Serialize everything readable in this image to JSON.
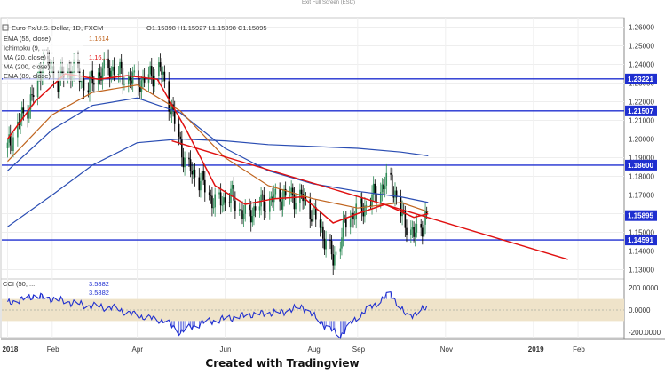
{
  "header": {
    "symbol": "Euro Fx/U.S. Dollar, 1D, FXCM",
    "ohlc": "O1.15398  H1.15927  L1.15398  C1.15895",
    "exit_fullscreen": "Exit Full Screen (ESC)"
  },
  "legend_items": [
    {
      "label": "EMA (55, close)",
      "value": "1.1614",
      "color": "#c0641e"
    },
    {
      "label": "Ichimoku (9, ...",
      "value": "",
      "color": "#888888"
    },
    {
      "label": "MA (20, close)",
      "value": "1.16...",
      "color": "#e01010"
    },
    {
      "label": "MA (200, close)",
      "value": "",
      "color": "#2a4db3"
    },
    {
      "label": "EMA (89, close)",
      "value": "",
      "color": "#2a4db3"
    }
  ],
  "cci_legend": {
    "label": "CCI (50, ...",
    "value1": "3.5882",
    "value2": "3.5882"
  },
  "caption": "Created with Tradingview",
  "colors": {
    "candle_up": "#2e8b57",
    "candle_down": "#000000",
    "ma20": "#e01010",
    "ema55": "#c0641e",
    "ma200": "#2a4db3",
    "ema89": "#2a4db3",
    "hline": "#1f2fd0",
    "trendline": "#e01010",
    "cci": "#1f2fd0",
    "cci_band": "#efe3c9",
    "price_tag": "#1f2fd0",
    "current_tag": "#1f2fd0"
  },
  "chart_data": {
    "type": "line",
    "title": "",
    "xlabel": "",
    "ylabel": "",
    "ylim": [
      1.125,
      1.265
    ],
    "y_ticks": [
      "1.26000",
      "1.25000",
      "1.24000",
      "1.23000",
      "1.22000",
      "1.21000",
      "1.20000",
      "1.19000",
      "1.18000",
      "1.17000",
      "1.16000",
      "1.15000",
      "1.14000",
      "1.13000"
    ],
    "x_tick_labels": [
      "2018",
      "Feb",
      "Apr",
      "Jun",
      "Aug",
      "Sep",
      "Nov",
      "2019",
      "Feb"
    ],
    "horizontal_levels": [
      {
        "label": "1.23221",
        "value": 1.23221
      },
      {
        "label": "1.21507",
        "value": 1.21507
      },
      {
        "label": "1.18600",
        "value": 1.186
      },
      {
        "label": "1.14591",
        "value": 1.14591
      }
    ],
    "current_price": {
      "label": "1.15895",
      "value": 1.15895
    },
    "trendline": {
      "start": {
        "x": "2018-04-25",
        "y": 1.199
      },
      "end": {
        "x": "2019-01-25",
        "y": 1.1355
      }
    },
    "close_series": {
      "x": [
        "2018-01-01",
        "2018-01-10",
        "2018-01-20",
        "2018-01-26",
        "2018-02-05",
        "2018-02-15",
        "2018-02-25",
        "2018-03-05",
        "2018-03-15",
        "2018-03-25",
        "2018-04-05",
        "2018-04-17",
        "2018-04-25",
        "2018-05-05",
        "2018-05-15",
        "2018-05-25",
        "2018-06-05",
        "2018-06-15",
        "2018-06-25",
        "2018-07-05",
        "2018-07-15",
        "2018-07-25",
        "2018-08-05",
        "2018-08-15",
        "2018-08-25",
        "2018-09-05",
        "2018-09-15",
        "2018-09-24",
        "2018-10-01",
        "2018-10-10",
        "2018-10-20"
      ],
      "y": [
        1.195,
        1.21,
        1.225,
        1.242,
        1.232,
        1.238,
        1.228,
        1.235,
        1.238,
        1.232,
        1.231,
        1.238,
        1.215,
        1.185,
        1.178,
        1.165,
        1.17,
        1.158,
        1.165,
        1.168,
        1.17,
        1.168,
        1.155,
        1.135,
        1.158,
        1.163,
        1.172,
        1.178,
        1.16,
        1.148,
        1.159
      ]
    },
    "ma20": {
      "x": [
        "2018-01-01",
        "2018-01-20",
        "2018-02-10",
        "2018-03-05",
        "2018-03-25",
        "2018-04-15",
        "2018-05-05",
        "2018-05-25",
        "2018-06-15",
        "2018-07-05",
        "2018-07-25",
        "2018-08-15",
        "2018-09-01",
        "2018-09-20",
        "2018-10-10",
        "2018-10-20"
      ],
      "y": [
        1.2,
        1.22,
        1.235,
        1.232,
        1.234,
        1.232,
        1.205,
        1.175,
        1.165,
        1.168,
        1.169,
        1.155,
        1.16,
        1.165,
        1.158,
        1.16
      ]
    },
    "ema55": {
      "x": [
        "2018-01-01",
        "2018-02-01",
        "2018-03-01",
        "2018-04-01",
        "2018-05-01",
        "2018-06-01",
        "2018-07-01",
        "2018-08-01",
        "2018-09-01",
        "2018-10-01",
        "2018-10-20"
      ],
      "y": [
        1.188,
        1.213,
        1.225,
        1.229,
        1.215,
        1.19,
        1.175,
        1.168,
        1.163,
        1.166,
        1.161
      ]
    },
    "ema89": {
      "x": [
        "2018-01-01",
        "2018-02-01",
        "2018-03-01",
        "2018-04-01",
        "2018-05-01",
        "2018-06-01",
        "2018-07-01",
        "2018-08-01",
        "2018-09-01",
        "2018-10-01",
        "2018-10-20"
      ],
      "y": [
        1.183,
        1.205,
        1.218,
        1.222,
        1.214,
        1.195,
        1.183,
        1.176,
        1.172,
        1.169,
        1.166
      ]
    },
    "ma200": {
      "x": [
        "2018-01-01",
        "2018-02-01",
        "2018-03-01",
        "2018-04-01",
        "2018-05-01",
        "2018-06-01",
        "2018-07-01",
        "2018-08-01",
        "2018-09-01",
        "2018-10-01",
        "2018-10-20"
      ],
      "y": [
        1.153,
        1.17,
        1.186,
        1.198,
        1.2,
        1.199,
        1.197,
        1.196,
        1.195,
        1.193,
        1.191
      ]
    },
    "cci": {
      "ylim": [
        -250,
        250
      ],
      "y_ticks": [
        "200.0000",
        "0.0000",
        "-200.0000"
      ],
      "band": [
        100,
        -100
      ],
      "x": [
        "2018-01-01",
        "2018-01-20",
        "2018-02-05",
        "2018-02-25",
        "2018-03-15",
        "2018-04-01",
        "2018-04-20",
        "2018-05-01",
        "2018-05-15",
        "2018-06-01",
        "2018-06-20",
        "2018-07-10",
        "2018-07-25",
        "2018-08-10",
        "2018-08-20",
        "2018-09-01",
        "2018-09-15",
        "2018-09-24",
        "2018-10-05",
        "2018-10-20"
      ],
      "y": [
        60,
        130,
        90,
        40,
        20,
        -50,
        -100,
        -200,
        -120,
        -80,
        -40,
        -20,
        30,
        -150,
        -230,
        -60,
        70,
        150,
        -60,
        20
      ]
    }
  }
}
